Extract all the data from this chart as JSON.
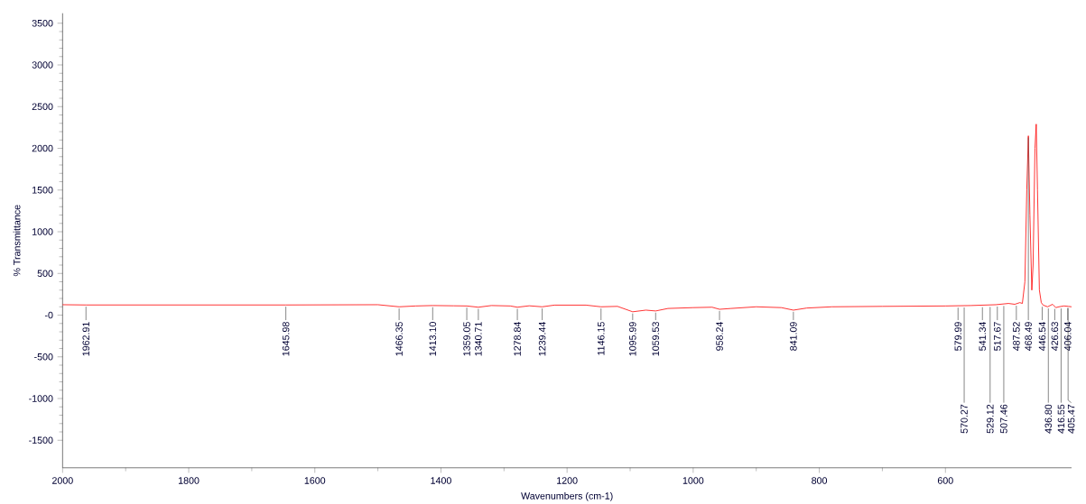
{
  "chart_data": {
    "type": "line",
    "xlabel": "Wavenumbers (cm-1)",
    "ylabel": "% Transmittance",
    "color": "#ff0000",
    "x": [
      2000,
      1962.91,
      1645.98,
      1500,
      1466.35,
      1440,
      1413.1,
      1380,
      1359.05,
      1340.71,
      1320,
      1290,
      1278.84,
      1260,
      1239.44,
      1220,
      1170,
      1146.15,
      1120,
      1095.99,
      1075,
      1059.53,
      1040,
      1000,
      970,
      958.24,
      940,
      900,
      860,
      841.09,
      820,
      780,
      700,
      600,
      560,
      520,
      500,
      490,
      482,
      478,
      474,
      471,
      468.49,
      466,
      463,
      461,
      458,
      456,
      454,
      451,
      448,
      445,
      438,
      430,
      425,
      420,
      412,
      405,
      400
    ],
    "values": [
      125,
      122,
      122,
      125,
      100,
      110,
      115,
      112,
      110,
      95,
      115,
      110,
      95,
      112,
      100,
      120,
      120,
      100,
      105,
      40,
      60,
      50,
      80,
      90,
      95,
      70,
      80,
      100,
      90,
      60,
      85,
      100,
      105,
      110,
      115,
      125,
      140,
      130,
      150,
      140,
      400,
      1500,
      2150,
      1200,
      300,
      600,
      2000,
      2290,
      1500,
      300,
      150,
      120,
      100,
      130,
      90,
      100,
      110,
      105,
      100
    ],
    "xlim": [
      2000,
      400
    ],
    "ylim": [
      -1830,
      3620
    ],
    "xticks": [
      2000,
      1800,
      1600,
      1400,
      1200,
      1000,
      800,
      600
    ],
    "yticks": [
      -1500,
      -1000,
      -500,
      {
        "value": 0,
        "label": "-0"
      },
      500,
      1000,
      1500,
      2000,
      2500,
      3000,
      3500
    ],
    "annotations": [
      {
        "text": "1962.91",
        "x": 1962.91,
        "y": 122
      },
      {
        "text": "1645.98",
        "x": 1645.98,
        "y": 122
      },
      {
        "text": "1466.35",
        "x": 1466.35,
        "y": 100
      },
      {
        "text": "1413.10",
        "x": 1413.1,
        "y": 115
      },
      {
        "text": "1359.05",
        "x": 1359.05,
        "y": 110
      },
      {
        "text": "1340.71",
        "x": 1340.71,
        "y": 95
      },
      {
        "text": "1278.84",
        "x": 1278.84,
        "y": 95
      },
      {
        "text": "1239.44",
        "x": 1239.44,
        "y": 100
      },
      {
        "text": "1146.15",
        "x": 1146.15,
        "y": 100
      },
      {
        "text": "1095.99",
        "x": 1095.99,
        "y": 40
      },
      {
        "text": "1059.53",
        "x": 1059.53,
        "y": 50
      },
      {
        "text": "958.24",
        "x": 958.24,
        "y": 70
      },
      {
        "text": "841.09",
        "x": 841.09,
        "y": 60
      },
      {
        "text": "579.99",
        "x": 579.99,
        "y": 110
      },
      {
        "text": "570.27",
        "x": 570.27,
        "y": 112
      },
      {
        "text": "541.34",
        "x": 541.34,
        "y": 115
      },
      {
        "text": "529.12",
        "x": 529.12,
        "y": 118
      },
      {
        "text": "517.67",
        "x": 517.67,
        "y": 123
      },
      {
        "text": "507.46",
        "x": 507.46,
        "y": 130
      },
      {
        "text": "487.52",
        "x": 487.52,
        "y": 133
      },
      {
        "text": "468.49",
        "x": 468.49,
        "y": 2150
      },
      {
        "text": "446.54",
        "x": 446.54,
        "y": 120
      },
      {
        "text": "436.80",
        "x": 436.8,
        "y": 100
      },
      {
        "text": "426.63",
        "x": 426.63,
        "y": 95
      },
      {
        "text": "416.55",
        "x": 416.55,
        "y": 100
      },
      {
        "text": "406.04",
        "x": 406.04,
        "y": 105
      },
      {
        "text": "405.47",
        "x": 405.47,
        "y": 105
      }
    ]
  }
}
